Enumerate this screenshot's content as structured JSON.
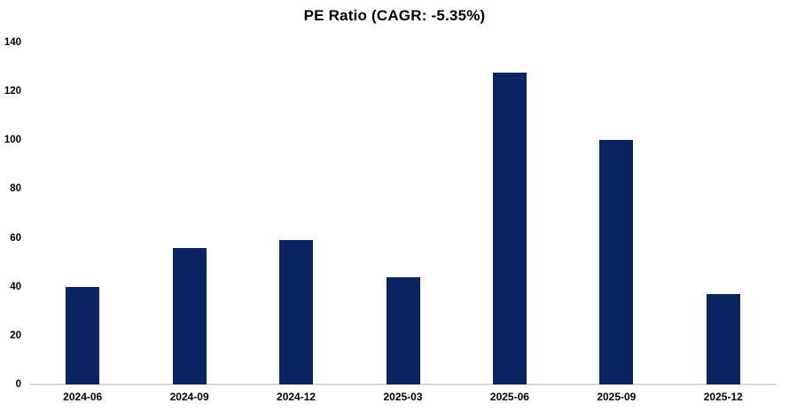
{
  "chart_data": {
    "type": "bar",
    "title": "PE Ratio (CAGR: -5.35%)",
    "categories": [
      "2024-06",
      "2024-09",
      "2024-12",
      "2025-03",
      "2025-06",
      "2025-09",
      "2025-12"
    ],
    "values": [
      40,
      56,
      59,
      44,
      127.5,
      100,
      37
    ],
    "xlabel": "",
    "ylabel": "",
    "ylim": [
      0,
      140
    ],
    "ytick_step": 20,
    "ytick_labels": [
      "0",
      "20",
      "40",
      "60",
      "80",
      "100",
      "120",
      "140"
    ],
    "grid": false,
    "legend": false,
    "bar_color": "#0a2463",
    "axis_line_color": "#d9d9d9",
    "text_color": "#000000",
    "background_color": "#ffffff"
  }
}
